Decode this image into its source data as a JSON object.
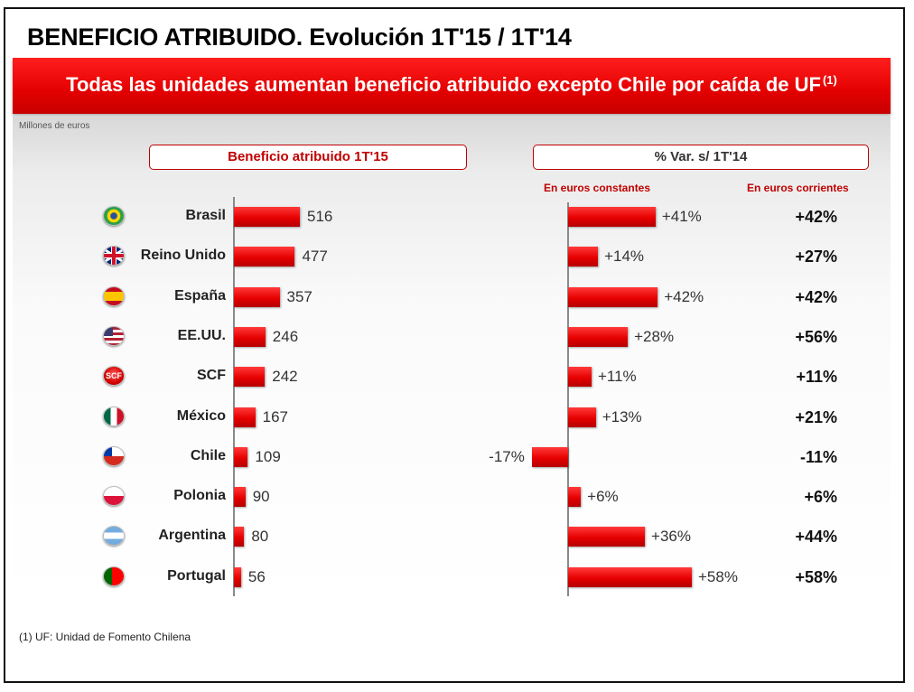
{
  "title": "BENEFICIO ATRIBUIDO. Evolución 1T'15 / 1T'14",
  "banner": {
    "text": "Todas las unidades aumentan beneficio atribuido excepto Chile por caída de UF",
    "sup": "(1)"
  },
  "units": "Millones de euros",
  "footnote": "(1) UF: Unidad de Fomento Chilena",
  "chart_data": [
    {
      "type": "bar",
      "title": "Beneficio atribuido 1T'15",
      "categories": [
        "Brasil",
        "Reino Unido",
        "España",
        "EE.UU.",
        "SCF",
        "México",
        "Chile",
        "Polonia",
        "Argentina",
        "Portugal"
      ],
      "values": [
        516,
        477,
        357,
        246,
        242,
        167,
        109,
        90,
        80,
        56
      ],
      "labels": [
        "516",
        "477",
        "357",
        "246",
        "242",
        "167",
        "109",
        "90",
        "80",
        "56"
      ]
    },
    {
      "type": "bar",
      "title": "% Var. s/ 1T'14",
      "categories": [
        "Brasil",
        "Reino Unido",
        "España",
        "EE.UU.",
        "SCF",
        "México",
        "Chile",
        "Polonia",
        "Argentina",
        "Portugal"
      ],
      "series": [
        {
          "name": "En euros constantes",
          "values": [
            41,
            14,
            42,
            28,
            11,
            13,
            -17,
            6,
            36,
            58
          ],
          "labels": [
            "+41%",
            "+14%",
            "+42%",
            "+28%",
            "+11%",
            "+13%",
            "-17%",
            "+6%",
            "+36%",
            "+58%"
          ]
        },
        {
          "name": "En euros corrientes",
          "values": [
            42,
            27,
            42,
            56,
            11,
            21,
            -11,
            6,
            44,
            58
          ],
          "labels": [
            "+42%",
            "+27%",
            "+42%",
            "+56%",
            "+11%",
            "+21%",
            "-11%",
            "+6%",
            "+44%",
            "+58%"
          ]
        }
      ]
    }
  ],
  "flags": [
    "brazil-flag-icon",
    "uk-flag-icon",
    "spain-flag-icon",
    "usa-flag-icon",
    "scf-logo-icon",
    "mexico-flag-icon",
    "chile-flag-icon",
    "poland-flag-icon",
    "argentina-flag-icon",
    "portugal-flag-icon"
  ],
  "scf_logo_text": "SCF",
  "colors": {
    "accent": "#e60000",
    "dark_red": "#c00000"
  }
}
